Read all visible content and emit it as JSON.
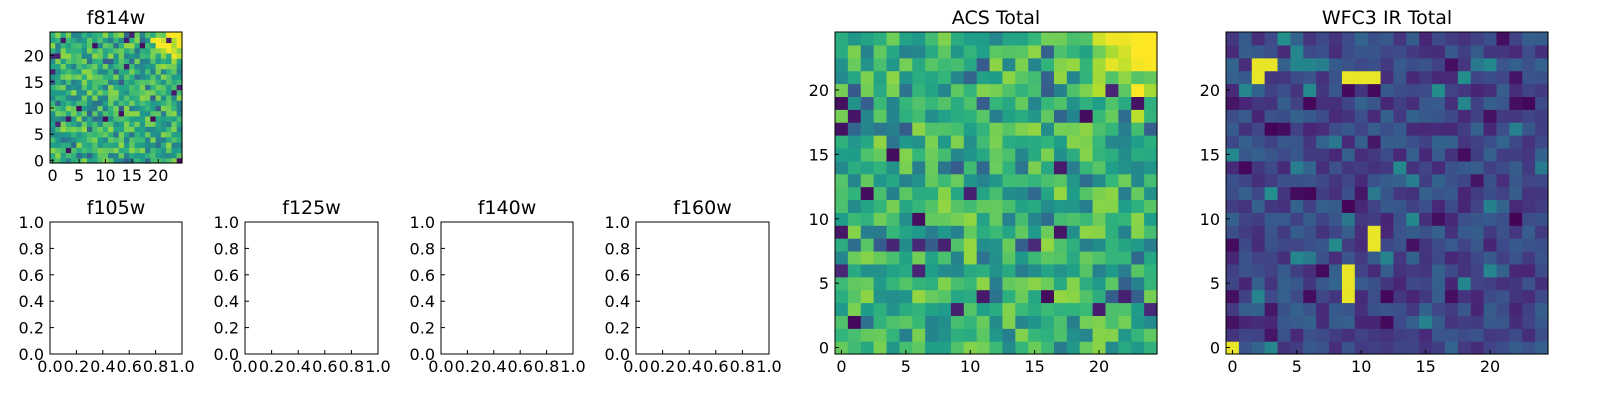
{
  "colormap": "viridis",
  "chart_data": [
    {
      "type": "heatmap",
      "title": "f814w",
      "grid_size": 25,
      "xticks": [
        0,
        5,
        10,
        15,
        20
      ],
      "yticks": [
        0,
        5,
        10,
        15,
        20
      ],
      "pattern": "noise-with-bright-top-right-corner"
    },
    {
      "type": "empty-axes",
      "title": "f105w",
      "xticks": [
        "0.0",
        "0.2",
        "0.4",
        "0.6",
        "0.8",
        "1.0"
      ],
      "yticks": [
        "0.0",
        "0.2",
        "0.4",
        "0.6",
        "0.8",
        "1.0"
      ]
    },
    {
      "type": "empty-axes",
      "title": "f125w",
      "xticks": [
        "0.0",
        "0.2",
        "0.4",
        "0.6",
        "0.8",
        "1.0"
      ],
      "yticks": [
        "0.0",
        "0.2",
        "0.4",
        "0.6",
        "0.8",
        "1.0"
      ]
    },
    {
      "type": "empty-axes",
      "title": "f140w",
      "xticks": [
        "0.0",
        "0.2",
        "0.4",
        "0.6",
        "0.8",
        "1.0"
      ],
      "yticks": [
        "0.0",
        "0.2",
        "0.4",
        "0.6",
        "0.8",
        "1.0"
      ]
    },
    {
      "type": "empty-axes",
      "title": "f160w",
      "xticks": [
        "0.0",
        "0.2",
        "0.4",
        "0.6",
        "0.8",
        "1.0"
      ],
      "yticks": [
        "0.0",
        "0.2",
        "0.4",
        "0.6",
        "0.8",
        "1.0"
      ]
    },
    {
      "type": "heatmap",
      "title": "ACS Total",
      "grid_size": 25,
      "xticks": [
        0,
        5,
        10,
        15,
        20
      ],
      "yticks": [
        0,
        5,
        10,
        15,
        20
      ],
      "pattern": "noise-with-bright-top-right-corner"
    },
    {
      "type": "heatmap",
      "title": "WFC3 IR Total",
      "grid_size": 25,
      "xticks": [
        0,
        5,
        10,
        15,
        20
      ],
      "yticks": [
        0,
        5,
        10,
        15,
        20
      ],
      "pattern": "dark-noise-with-bright-spots",
      "bright_pixels": [
        [
          2,
          22
        ],
        [
          2,
          21
        ],
        [
          3,
          22
        ],
        [
          9,
          21
        ],
        [
          10,
          21
        ],
        [
          11,
          21
        ],
        [
          11,
          9
        ],
        [
          11,
          8
        ],
        [
          9,
          6
        ],
        [
          9,
          5
        ],
        [
          9,
          4
        ],
        [
          0,
          0
        ]
      ]
    }
  ]
}
